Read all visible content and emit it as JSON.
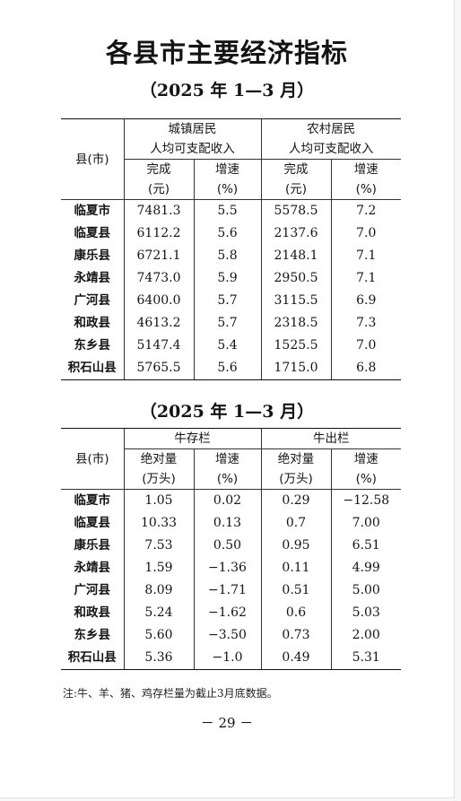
{
  "title": "各县市主要经济指标",
  "table1": {
    "period": "（2025 年 1—3 月）",
    "county_header": "县(市)",
    "group1_line1": "城镇居民",
    "group1_line2": "人均可支配收入",
    "group2_line1": "农村居民",
    "group2_line2": "人均可支配收入",
    "col_done": "完成",
    "col_done_unit": "(元)",
    "col_growth": "增速",
    "col_growth_unit": "(%)",
    "rows": [
      {
        "county": "临夏市",
        "urban": "7481.3",
        "urban_g": "5.5",
        "rural": "5578.5",
        "rural_g": "7.2"
      },
      {
        "county": "临夏县",
        "urban": "6112.2",
        "urban_g": "5.6",
        "rural": "2137.6",
        "rural_g": "7.0"
      },
      {
        "county": "康乐县",
        "urban": "6721.1",
        "urban_g": "5.8",
        "rural": "2148.1",
        "rural_g": "7.1"
      },
      {
        "county": "永靖县",
        "urban": "7473.0",
        "urban_g": "5.9",
        "rural": "2950.5",
        "rural_g": "7.1"
      },
      {
        "county": "广河县",
        "urban": "6400.0",
        "urban_g": "5.7",
        "rural": "3115.5",
        "rural_g": "6.9"
      },
      {
        "county": "和政县",
        "urban": "4613.2",
        "urban_g": "5.7",
        "rural": "2318.5",
        "rural_g": "7.3"
      },
      {
        "county": "东乡县",
        "urban": "5147.4",
        "urban_g": "5.4",
        "rural": "1525.5",
        "rural_g": "7.0"
      },
      {
        "county": "积石山县",
        "urban": "5765.5",
        "urban_g": "5.6",
        "rural": "1715.0",
        "rural_g": "6.8"
      }
    ]
  },
  "table2": {
    "period": "（2025 年 1—3 月）",
    "county_header": "县(市)",
    "group1": "牛存栏",
    "group2": "牛出栏",
    "col_abs": "绝对量",
    "col_abs_unit": "(万头)",
    "col_growth": "增速",
    "col_growth_unit": "(%)",
    "rows": [
      {
        "county": "临夏市",
        "stock": "1.05",
        "stock_g": "0.02",
        "out": "0.29",
        "out_g": "−12.58"
      },
      {
        "county": "临夏县",
        "stock": "10.33",
        "stock_g": "0.13",
        "out": "0.7",
        "out_g": "7.00"
      },
      {
        "county": "康乐县",
        "stock": "7.53",
        "stock_g": "0.50",
        "out": "0.95",
        "out_g": "6.51"
      },
      {
        "county": "永靖县",
        "stock": "1.59",
        "stock_g": "−1.36",
        "out": "0.11",
        "out_g": "4.99"
      },
      {
        "county": "广河县",
        "stock": "8.09",
        "stock_g": "−1.71",
        "out": "0.51",
        "out_g": "5.00"
      },
      {
        "county": "和政县",
        "stock": "5.24",
        "stock_g": "−1.62",
        "out": "0.6",
        "out_g": "5.03"
      },
      {
        "county": "东乡县",
        "stock": "5.60",
        "stock_g": "−3.50",
        "out": "0.73",
        "out_g": "2.00"
      },
      {
        "county": "积石山县",
        "stock": "5.36",
        "stock_g": "−1.0",
        "out": "0.49",
        "out_g": "5.31"
      }
    ]
  },
  "note": "注:牛、羊、猪、鸡存栏量为截止3月底数据。",
  "page_number": "－ 29 －"
}
